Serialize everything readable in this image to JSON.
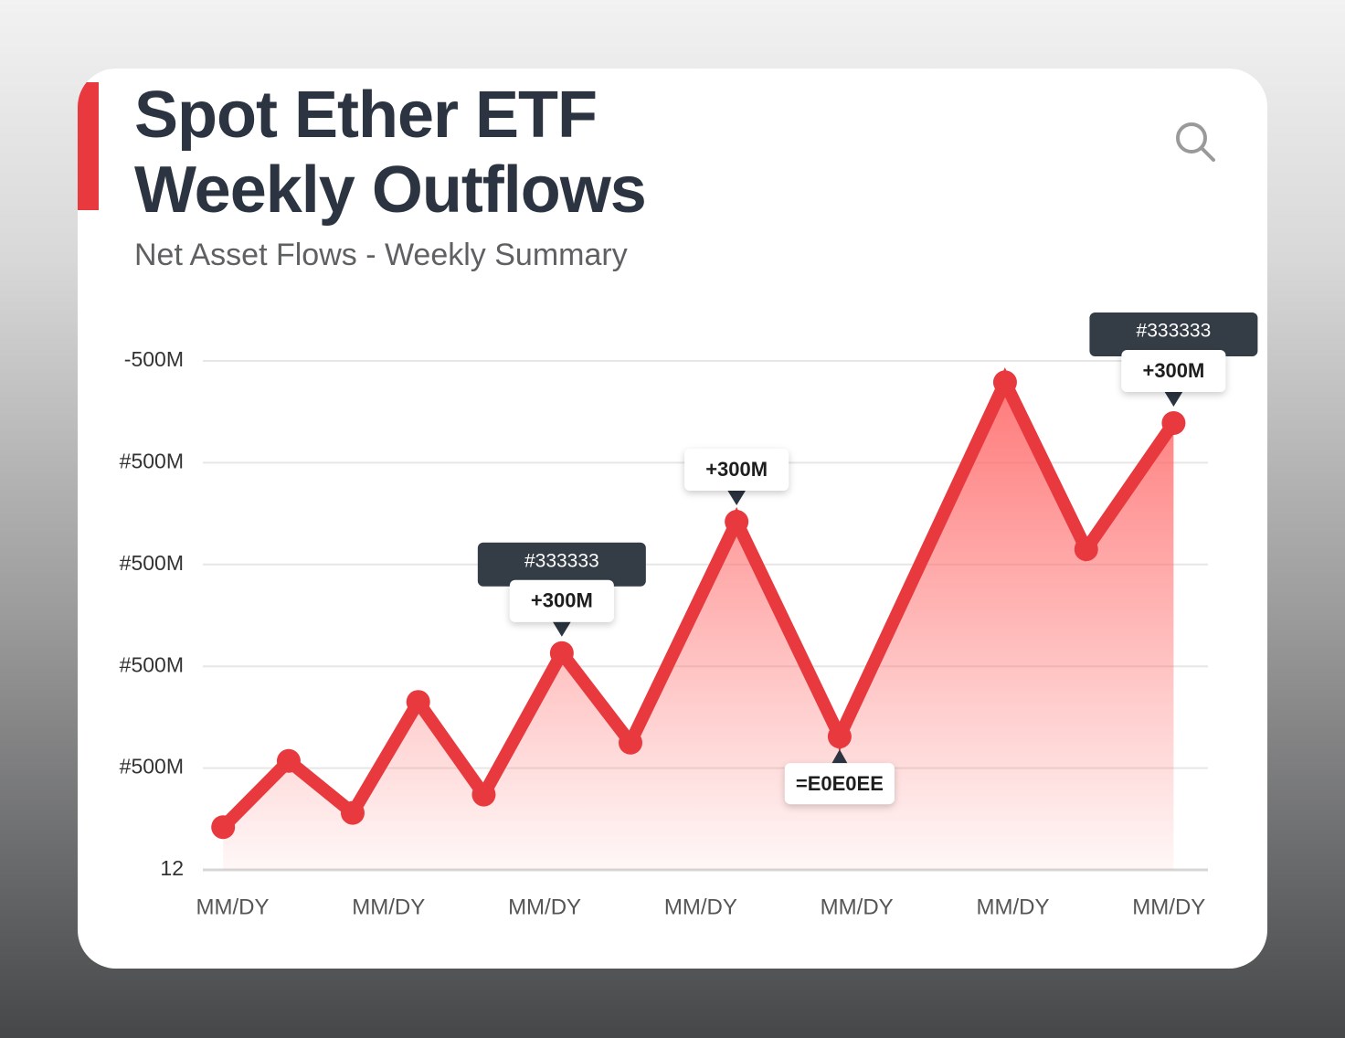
{
  "chart_data": {
    "type": "line",
    "title": "Spot Ether ETF Weekly Outflows",
    "subtitle": "Net Asset Flows - Weekly Summary",
    "x": [
      -0.06,
      0.36,
      0.77,
      1.19,
      1.61,
      2.11,
      2.55,
      3.23,
      3.89,
      4.95,
      5.47,
      6.03
    ],
    "series": [
      {
        "color": "#e8393f",
        "values": [
          54,
          119,
          68,
          177,
          86,
          225,
          137,
          354,
          143,
          491,
          327,
          451
        ]
      }
    ],
    "xlim": [
      -0.19,
      6.25
    ],
    "xticks": [
      {
        "value": 0,
        "label": "MM/DY"
      },
      {
        "value": 1,
        "label": "MM/DY"
      },
      {
        "value": 2,
        "label": "MM/DY"
      },
      {
        "value": 3,
        "label": "MM/DY"
      },
      {
        "value": 4,
        "label": "MM/DY"
      },
      {
        "value": 5,
        "label": "MM/DY"
      },
      {
        "value": 6,
        "label": "MM/DY"
      }
    ],
    "ylim": [
      12,
      512
    ],
    "yticks": [
      12,
      {
        "value": 112,
        "label": "#500M"
      },
      {
        "value": 212,
        "label": "#500M"
      },
      {
        "value": 312,
        "label": "#500M"
      },
      {
        "value": 412,
        "label": "#500M"
      },
      {
        "value": 512,
        "label": "-500M"
      }
    ],
    "grid": true,
    "annotations": [
      {
        "at": 5,
        "tag": "#333333",
        "label": "+300M",
        "position": "above"
      },
      {
        "at": 7,
        "label": "+300M",
        "position": "above"
      },
      {
        "at": 11,
        "tag": "#333333",
        "label": "+300M",
        "position": "above"
      },
      {
        "at": 8,
        "label": "=E0E0EE",
        "position": "below"
      }
    ]
  }
}
